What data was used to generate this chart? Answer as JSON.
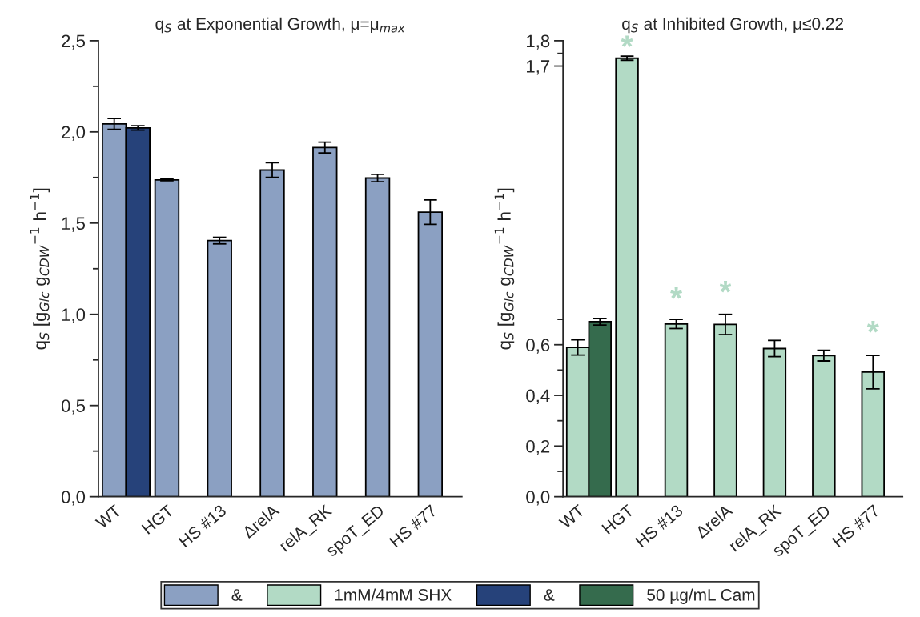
{
  "chart_data": [
    {
      "type": "bar",
      "title": "q$_{S}$ at Exponential Growth, μ=μ$_{max}$",
      "ylabel": "q$_{S}$ [g$_{Glc}$ g$_{CDW}$$^{−1}$ h$^{−1}$]",
      "categories": [
        "WT",
        "HGT",
        "HS #13",
        "ΔrelA",
        "relA_RK",
        "spoT_ED",
        "HS #77"
      ],
      "series": [
        {
          "name": "&",
          "color": "#8ba0c2",
          "values": [
            2.044,
            1.737,
            1.404,
            1.791,
            1.914,
            1.747,
            1.56
          ],
          "errors": [
            0.03,
            0.005,
            0.018,
            0.04,
            0.03,
            0.02,
            0.067
          ]
        },
        {
          "name": "&",
          "color": "#26427a",
          "values": [
            2.022,
            null,
            null,
            null,
            null,
            null,
            null
          ],
          "errors": [
            0.012,
            null,
            null,
            null,
            null,
            null,
            null
          ]
        }
      ],
      "ylim": [
        0,
        2.5
      ],
      "yticks": [
        {
          "value": 0,
          "label": "0,0"
        },
        {
          "value": 0.25,
          "label": null
        },
        {
          "value": 0.5,
          "label": "0,5"
        },
        {
          "value": 0.75,
          "label": null
        },
        {
          "value": 1.0,
          "label": "1,0"
        },
        {
          "value": 1.25,
          "label": null
        },
        {
          "value": 1.5,
          "label": "1,5"
        },
        {
          "value": 1.75,
          "label": null
        },
        {
          "value": 2.0,
          "label": "2,0"
        },
        {
          "value": 2.25,
          "label": null
        },
        {
          "value": 2.5,
          "label": "2,5"
        }
      ],
      "legend": "bottom",
      "grid": false
    },
    {
      "type": "bar",
      "title": "q$_{S}$ at Inhibited Growth, μ≤0.22",
      "ylabel": "q$_{S}$ [g$_{Glc}$ g$_{CDW}$$^{−1}$ h$^{−1}$]",
      "categories": [
        "WT",
        "HGT",
        "HS #13",
        "ΔrelA",
        "relA_RK",
        "spoT_ED",
        "HS #77"
      ],
      "series": [
        {
          "name": "1mM/4mM SHX",
          "color": "#b2dac5",
          "values": [
            0.589,
            1.731,
            0.682,
            0.68,
            0.585,
            0.557,
            0.492
          ],
          "errors": [
            0.03,
            0.008,
            0.018,
            0.04,
            0.032,
            0.021,
            0.066
          ]
        },
        {
          "name": "50 µg/mL Cam",
          "color": "#356b4d",
          "values": [
            0.691,
            null,
            null,
            null,
            null,
            null,
            null
          ],
          "errors": [
            0.013,
            null,
            null,
            null,
            null,
            null,
            null
          ]
        }
      ],
      "ylim": [
        0,
        1.8
      ],
      "yticks": [
        {
          "value": 0,
          "label": "0,0"
        },
        {
          "value": 0.1,
          "label": null
        },
        {
          "value": 0.2,
          "label": "0,2"
        },
        {
          "value": 0.3,
          "label": null
        },
        {
          "value": 0.4,
          "label": "0,4"
        },
        {
          "value": 0.5,
          "label": null
        },
        {
          "value": 0.6,
          "label": "0,6"
        },
        {
          "value": 0.7,
          "label": null
        },
        {
          "value": 1.7,
          "label": "1,7"
        },
        {
          "value": 1.75,
          "label": null
        },
        {
          "value": 1.8,
          "label": "1,8"
        }
      ],
      "annotations": [
        "*",
        "*",
        "*",
        "*"
      ],
      "legend": "bottom",
      "grid": false
    }
  ]
}
